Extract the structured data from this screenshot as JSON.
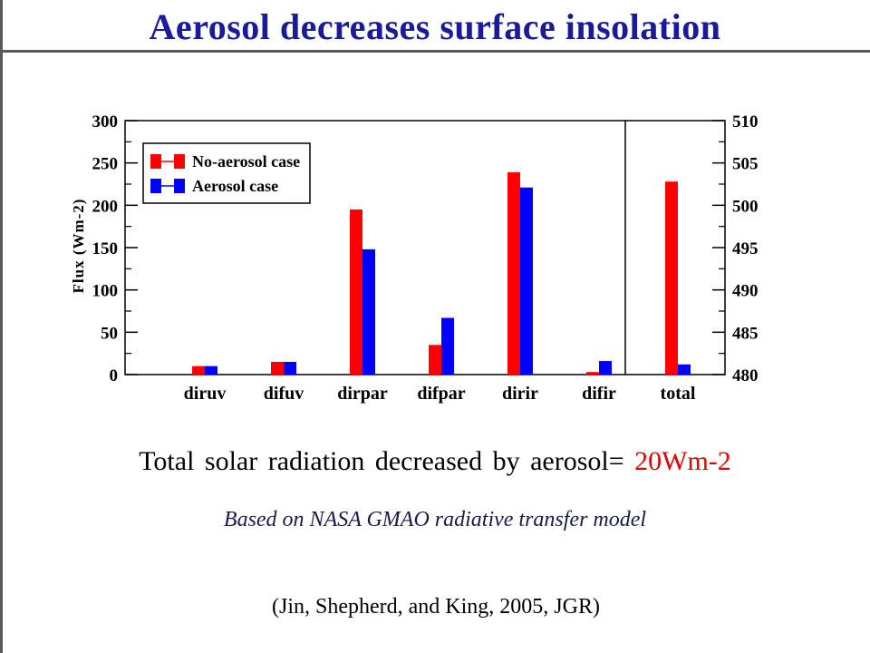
{
  "slide": {
    "title": "Aerosol decreases surface insolation",
    "summary_text": "Total solar radiation decreased by aerosol=",
    "summary_value": "20Wm-2",
    "source": "Based on NASA GMAO radiative transfer model",
    "citation": "(Jin, Shepherd, and King, 2005, JGR)"
  },
  "colors": {
    "title": "#1a1a9a",
    "no_aerosol": "#ff0000",
    "aerosol": "#0000ff",
    "highlight": "#e00000"
  },
  "chart_data": {
    "type": "bar",
    "ylabel": "Flux (Wm-2)",
    "categories": [
      "diruv",
      "difuv",
      "dirpar",
      "difpar",
      "dirir",
      "difir",
      "total"
    ],
    "left_axis": {
      "ylim": [
        0,
        300
      ],
      "ticks": [
        "0",
        "50",
        "100",
        "150",
        "200",
        "250",
        "300"
      ]
    },
    "right_axis": {
      "ylim": [
        480,
        510
      ],
      "ticks": [
        "480",
        "485",
        "490",
        "495",
        "500",
        "505",
        "510"
      ],
      "applies_to": [
        "total"
      ]
    },
    "series": [
      {
        "name": "No-aerosol case",
        "color": "#ff0000",
        "values": [
          10,
          15,
          195,
          35,
          239,
          3,
          502.8
        ]
      },
      {
        "name": "Aerosol case",
        "color": "#0000ff",
        "values": [
          10,
          15,
          148,
          67,
          221,
          16,
          481.2
        ]
      }
    ],
    "legend": "top-left",
    "grid": false
  }
}
